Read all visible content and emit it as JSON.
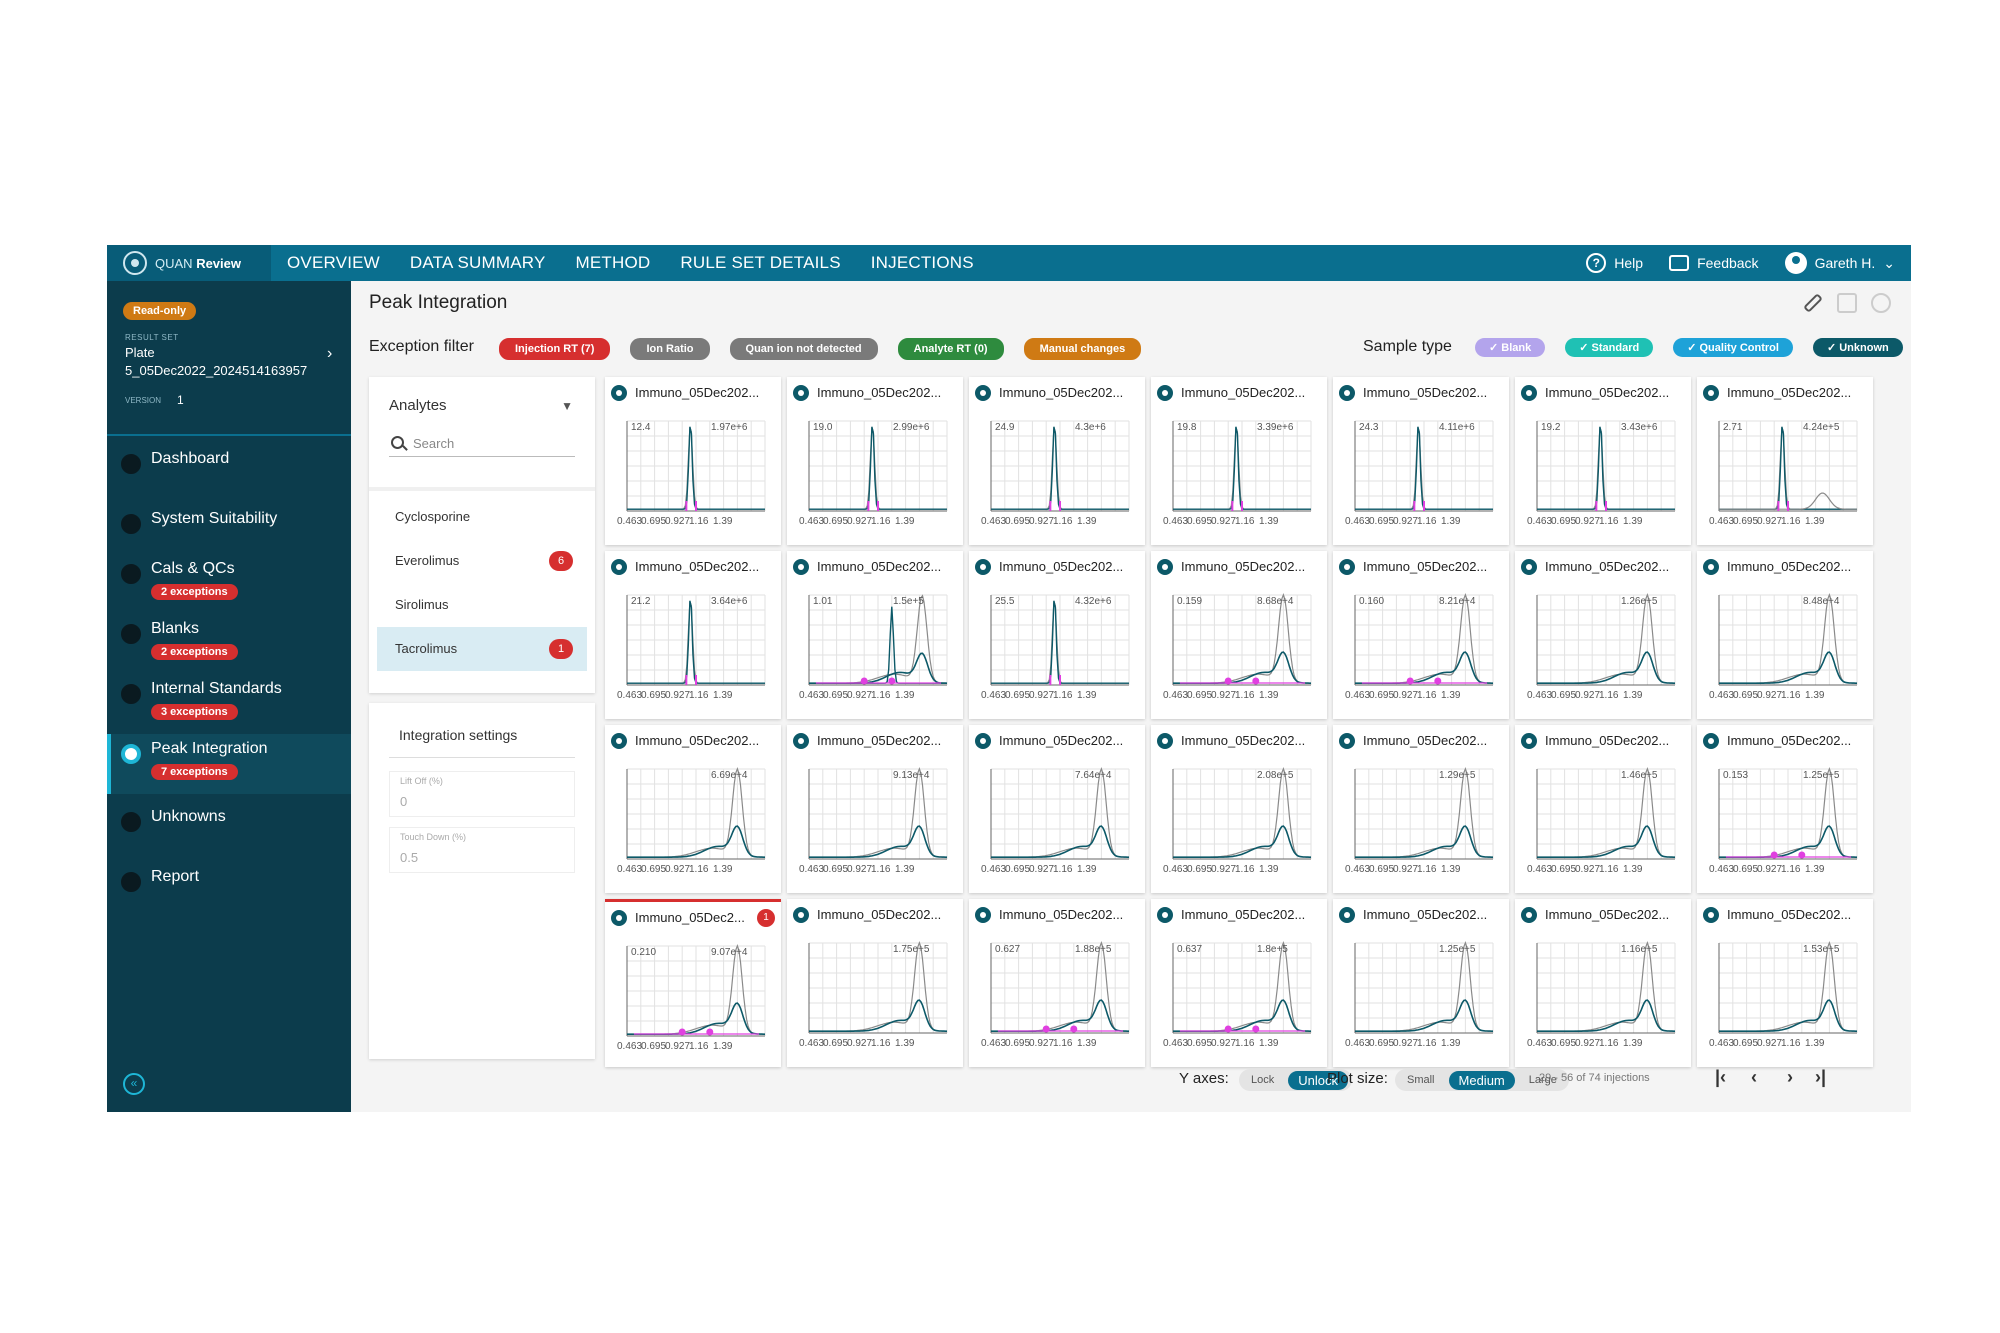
{
  "app": {
    "logo_name": "QUAN",
    "logo_bold": "Review"
  },
  "nav": [
    "OVERVIEW",
    "DATA SUMMARY",
    "METHOD",
    "RULE SET DETAILS",
    "INJECTIONS"
  ],
  "top_right": {
    "help": "Help",
    "feedback": "Feedback",
    "user": "Gareth H."
  },
  "sidebar": {
    "read_only": "Read-only",
    "result_set_label": "RESULT SET",
    "result_set_name": "Plate 5_05Dec2022_2024514163957",
    "version_label": "VERSION",
    "version": "1",
    "items": [
      {
        "label": "Dashboard",
        "badge": ""
      },
      {
        "label": "System Suitability",
        "badge": ""
      },
      {
        "label": "Cals & QCs",
        "badge": "2 exceptions"
      },
      {
        "label": "Blanks",
        "badge": "2 exceptions"
      },
      {
        "label": "Internal Standards",
        "badge": "3 exceptions"
      },
      {
        "label": "Peak Integration",
        "badge": "7 exceptions",
        "active": true
      },
      {
        "label": "Unknowns",
        "badge": ""
      },
      {
        "label": "Report",
        "badge": ""
      }
    ]
  },
  "page": {
    "title": "Peak Integration"
  },
  "exception_filter": {
    "label": "Exception filter",
    "chips": [
      {
        "label": "Injection RT (7)",
        "color": "#d62f2f"
      },
      {
        "label": "Ion Ratio",
        "color": "#7a7a7a"
      },
      {
        "label": "Quan ion not detected",
        "color": "#7a7a7a"
      },
      {
        "label": "Analyte RT (0)",
        "color": "#2e8b3e"
      },
      {
        "label": "Manual changes",
        "color": "#cf7a14"
      }
    ]
  },
  "sample_type": {
    "label": "Sample type",
    "chips": [
      {
        "label": "Blank",
        "color": "#b3a4ec"
      },
      {
        "label": "Standard",
        "color": "#1fc1b4"
      },
      {
        "label": "Quality Control",
        "color": "#1ea2d8"
      },
      {
        "label": "Unknown",
        "color": "#0c5968"
      }
    ]
  },
  "analytes": {
    "header": "Analytes",
    "search_placeholder": "Search",
    "items": [
      {
        "label": "Cyclosporine",
        "badge": ""
      },
      {
        "label": "Everolimus",
        "badge": "6"
      },
      {
        "label": "Sirolimus",
        "badge": ""
      },
      {
        "label": "Tacrolimus",
        "badge": "1",
        "active": true
      }
    ]
  },
  "integration": {
    "title": "Integration settings",
    "lift_off_label": "Lift Off (%)",
    "lift_off_value": "0",
    "touch_down_label": "Touch Down (%)",
    "touch_down_value": "0.5"
  },
  "x_ticks": [
    "0.463",
    "0.695",
    "0.927",
    "1.16",
    "1.39"
  ],
  "cards": [
    {
      "title": "Immuno_05Dec202...",
      "left": "12.4",
      "right": "1.97e+6",
      "shape": "narrow"
    },
    {
      "title": "Immuno_05Dec202...",
      "left": "19.0",
      "right": "2.99e+6",
      "shape": "narrow"
    },
    {
      "title": "Immuno_05Dec202...",
      "left": "24.9",
      "right": "4.3e+6",
      "shape": "narrow"
    },
    {
      "title": "Immuno_05Dec202...",
      "left": "19.8",
      "right": "3.39e+6",
      "shape": "narrow"
    },
    {
      "title": "Immuno_05Dec202...",
      "left": "24.3",
      "right": "4.11e+6",
      "shape": "narrow"
    },
    {
      "title": "Immuno_05Dec202...",
      "left": "19.2",
      "right": "3.43e+6",
      "shape": "narrow"
    },
    {
      "title": "Immuno_05Dec202...",
      "left": "2.71",
      "right": "4.24e+5",
      "shape": "narrow-broad"
    },
    {
      "title": "Immuno_05Dec202...",
      "left": "21.2",
      "right": "3.64e+6",
      "shape": "narrow"
    },
    {
      "title": "Immuno_05Dec202...",
      "left": "1.01",
      "right": "1.5e+5",
      "shape": "double"
    },
    {
      "title": "Immuno_05Dec202...",
      "left": "25.5",
      "right": "4.32e+6",
      "shape": "narrow"
    },
    {
      "title": "Immuno_05Dec202...",
      "left": "0.159",
      "right": "8.68e+4",
      "shape": "broad-marks"
    },
    {
      "title": "Immuno_05Dec202...",
      "left": "0.160",
      "right": "8.21e+4",
      "shape": "broad-marks"
    },
    {
      "title": "Immuno_05Dec202...",
      "left": "",
      "right": "1.26e+5",
      "shape": "broad"
    },
    {
      "title": "Immuno_05Dec202...",
      "left": "",
      "right": "8.48e+4",
      "shape": "broad"
    },
    {
      "title": "Immuno_05Dec202...",
      "left": "",
      "right": "6.69e+4",
      "shape": "broad"
    },
    {
      "title": "Immuno_05Dec202...",
      "left": "",
      "right": "9.13e+4",
      "shape": "broad"
    },
    {
      "title": "Immuno_05Dec202...",
      "left": "",
      "right": "7.64e+4",
      "shape": "broad"
    },
    {
      "title": "Immuno_05Dec202...",
      "left": "",
      "right": "2.08e+5",
      "shape": "broad"
    },
    {
      "title": "Immuno_05Dec202...",
      "left": "",
      "right": "1.29e+5",
      "shape": "broad"
    },
    {
      "title": "Immuno_05Dec202...",
      "left": "",
      "right": "1.46e+5",
      "shape": "broad"
    },
    {
      "title": "Immuno_05Dec202...",
      "left": "0.153",
      "right": "1.25e+5",
      "shape": "broad-marks"
    },
    {
      "title": "Immuno_05Dec2...",
      "left": "0.210",
      "right": "9.07e+4",
      "shape": "broad-marks",
      "badge": "1",
      "flagged": true
    },
    {
      "title": "Immuno_05Dec202...",
      "left": "",
      "right": "1.75e+5",
      "shape": "broad"
    },
    {
      "title": "Immuno_05Dec202...",
      "left": "0.627",
      "right": "1.88e+5",
      "shape": "broad-marks"
    },
    {
      "title": "Immuno_05Dec202...",
      "left": "0.637",
      "right": "1.8e+5",
      "shape": "broad-marks"
    },
    {
      "title": "Immuno_05Dec202...",
      "left": "",
      "right": "1.25e+5",
      "shape": "broad"
    },
    {
      "title": "Immuno_05Dec202...",
      "left": "",
      "right": "1.16e+5",
      "shape": "broad"
    },
    {
      "title": "Immuno_05Dec202...",
      "left": "",
      "right": "1.53e+5",
      "shape": "broad"
    }
  ],
  "bottom": {
    "y_axes_label": "Y axes:",
    "y_axes_options": [
      "Lock",
      "Unlock"
    ],
    "y_axes_selected": "Unlock",
    "plot_size_label": "Plot size:",
    "plot_size_options": [
      "Small",
      "Medium",
      "Large"
    ],
    "plot_size_selected": "Medium",
    "pagination": "29 - 56 of 74 injections"
  },
  "colors": {
    "teal_dark": "#0c5968",
    "gray_trace": "#8a8a8a",
    "magenta": "#e040e0",
    "nav_bg": "#0a6f8f",
    "sidebar_bg": "#0c3c4c"
  }
}
